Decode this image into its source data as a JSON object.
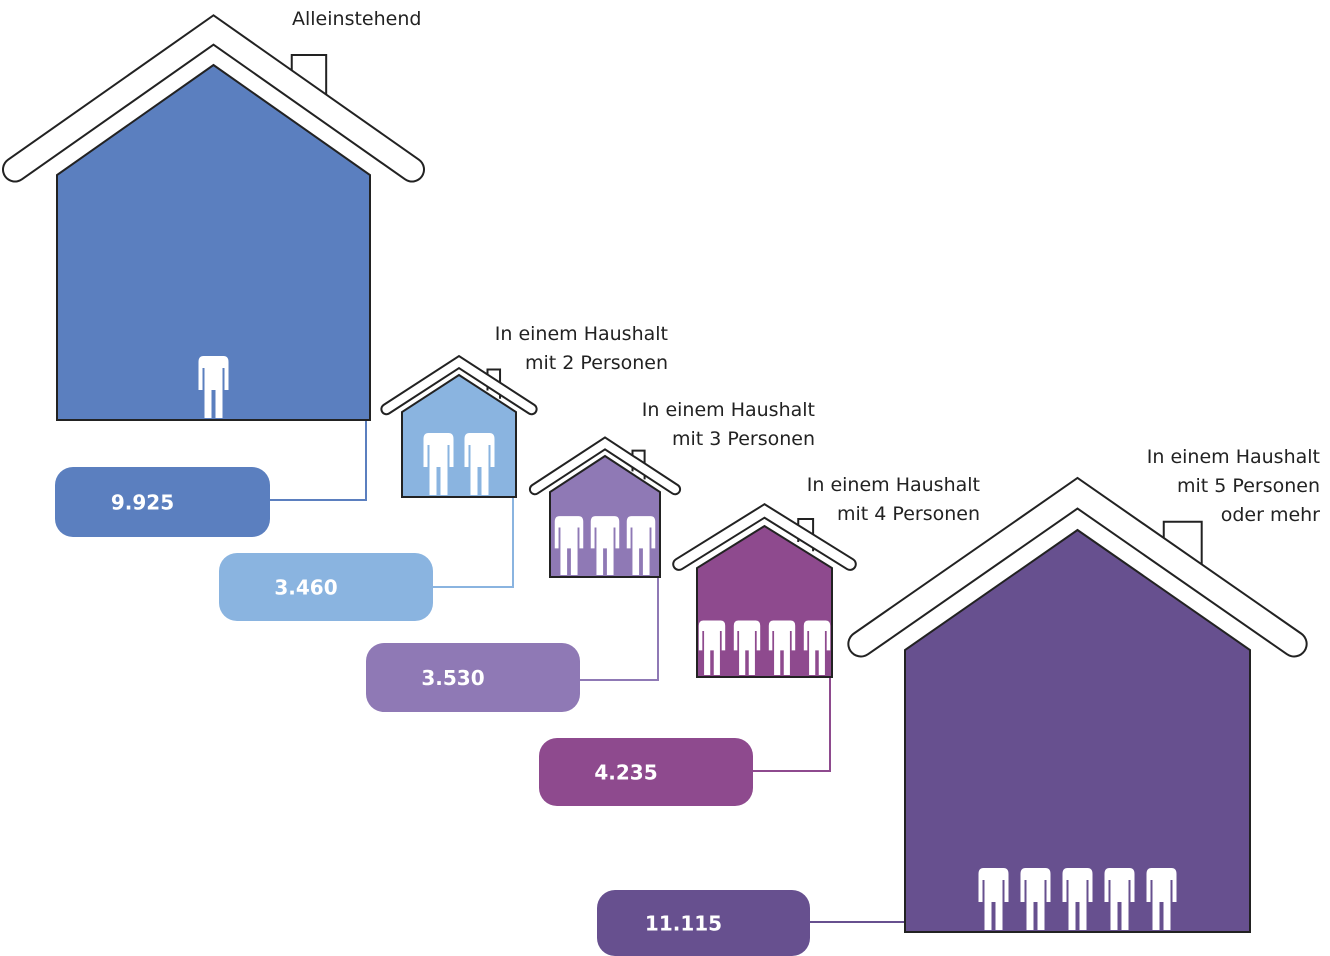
{
  "households": [
    {
      "label": [
        "Alleinstehend"
      ],
      "value": "9.925"
    },
    {
      "label": [
        "In einem Haushalt",
        "mit 2 Personen"
      ],
      "value": "3.460"
    },
    {
      "label": [
        "In einem Haushalt",
        "mit 3 Personen"
      ],
      "value": "3.530"
    },
    {
      "label": [
        "In einem Haushalt",
        "mit 4 Personen"
      ],
      "value": "4.235"
    },
    {
      "label": [
        "In einem Haushalt",
        "mit 5 Personen",
        "oder mehr"
      ],
      "value": "11.115"
    }
  ]
}
